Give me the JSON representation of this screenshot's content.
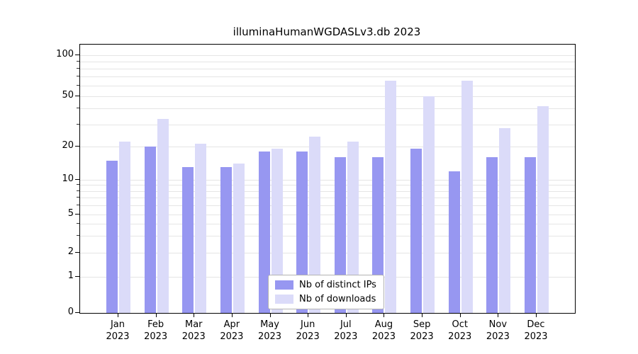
{
  "chart_data": {
    "type": "bar",
    "title": "illuminaHumanWGDASLv3.db 2023",
    "categories": [
      "Jan",
      "Feb",
      "Mar",
      "Apr",
      "May",
      "Jun",
      "Jul",
      "Aug",
      "Sep",
      "Oct",
      "Nov",
      "Dec"
    ],
    "category_year": "2023",
    "series": [
      {
        "name": "Nb of distinct IPs",
        "color": "#9797f1",
        "values": [
          15,
          20,
          13,
          13,
          18,
          18,
          16,
          16,
          19,
          12,
          16,
          16
        ]
      },
      {
        "name": "Nb of downloads",
        "color": "#dbdbf9",
        "values": [
          22,
          33,
          21,
          14,
          19,
          24,
          22,
          65,
          50,
          65,
          28,
          42
        ]
      }
    ],
    "yscale": "log",
    "yticks": [
      0,
      1,
      2,
      5,
      10,
      20,
      50,
      100
    ],
    "minor_gridlines": [
      3,
      4,
      6,
      7,
      8,
      9,
      30,
      40,
      60,
      70,
      80,
      90
    ],
    "ylim": [
      0,
      100
    ],
    "grid": "on",
    "grid_color": "#e5e5e5",
    "legend_position": "inside-bottom-center"
  }
}
